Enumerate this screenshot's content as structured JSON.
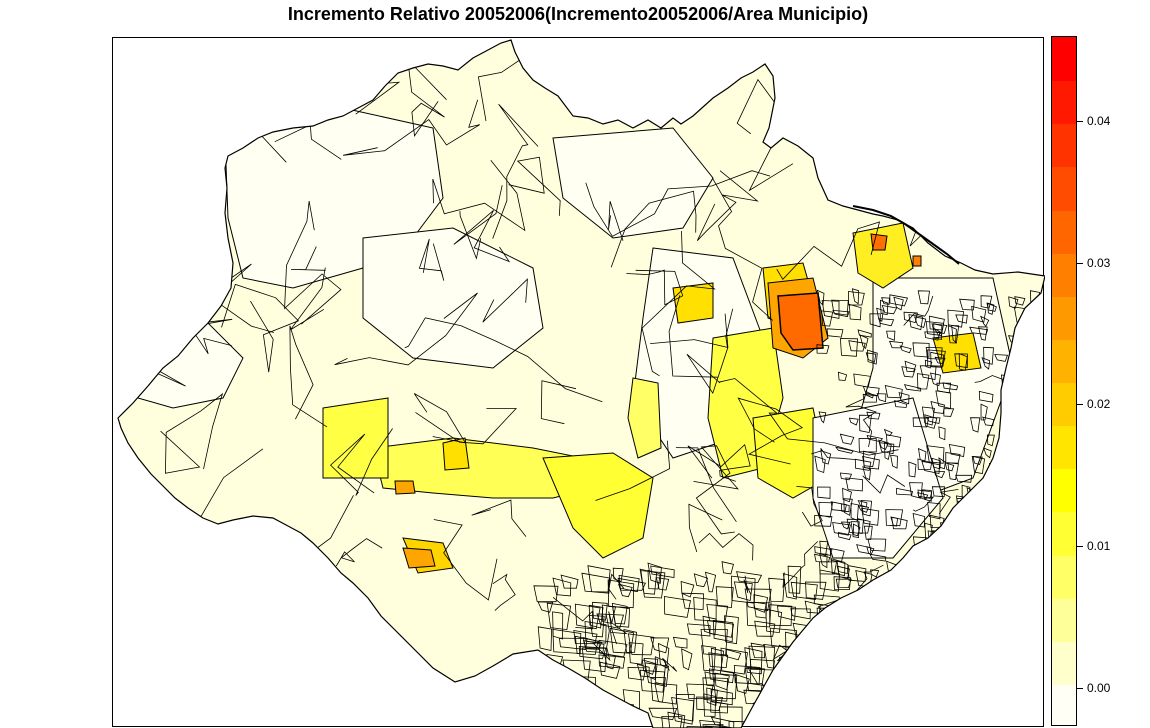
{
  "title": "Incremento Relativo 20052006(Incremento20052006/Area Municipio)",
  "legend": {
    "ticks": [
      {
        "value": 0.0,
        "label": "0.00"
      },
      {
        "value": 0.01,
        "label": "0.01"
      },
      {
        "value": 0.02,
        "label": "0.02"
      },
      {
        "value": 0.03,
        "label": "0.03"
      },
      {
        "value": 0.04,
        "label": "0.04"
      }
    ],
    "range": [
      -0.0027,
      0.046
    ],
    "colors": [
      "#FFFFF5",
      "#FFFFCC",
      "#FFFF99",
      "#FFFF66",
      "#FFFF33",
      "#FFFF00",
      "#FFE500",
      "#FFCC00",
      "#FFB200",
      "#FF9900",
      "#FF7F00",
      "#FF6600",
      "#FF4C00",
      "#FF3300",
      "#FF1900",
      "#FF0000"
    ]
  },
  "colors": {
    "border": "#000000",
    "light": "#FFFFDD",
    "pale": "#FFFFF2",
    "yellow": "#FFFF33",
    "gold": "#FFE000",
    "orange": "#FFA500",
    "red_orange": "#FF6A00"
  }
}
